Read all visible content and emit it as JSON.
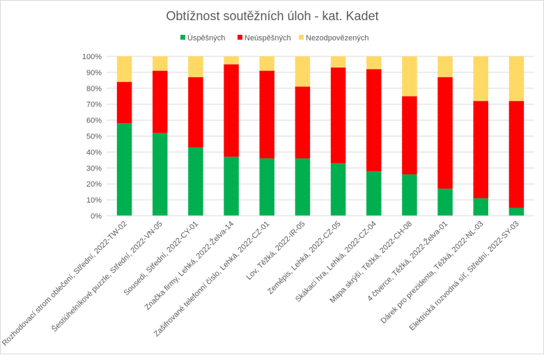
{
  "chart_data": {
    "type": "bar",
    "stacked": true,
    "percent": true,
    "title": "Obtížnost soutěžních úloh - kat. Kadet",
    "legend_position": "top",
    "ylim": [
      0,
      100
    ],
    "y_ticks": [
      "0%",
      "10%",
      "20%",
      "30%",
      "40%",
      "50%",
      "60%",
      "70%",
      "80%",
      "90%",
      "100%"
    ],
    "grid": true,
    "categories": [
      "Rozhodovací strom oblečení, Střední, 2022-TW-02",
      "Šestiúhelníkové puzzle, Střední, 2022-VN-05",
      "Sousedi, Střední, 2022-CY-01",
      "Značka firmy, Lehká, 2022-Želva-14",
      "Zašifrované telefonní číslo, Lehká, 2022-CZ-01",
      "Lov, Těžká, 2022-IR-05",
      "Zeměpis, Lehká, 2022-CZ-05",
      "Skákací hra, Lehká, 2022-CZ-04",
      "Mapa skrýší, Těžká, 2022-CH-08",
      "4 čtverce, Těžká, 2022-Želva-01",
      "Dárek pro prezidenta, Těžká, 2022-NL-03",
      "Elektrická rozvodná síť, Střední, 2022-SY-03"
    ],
    "series": [
      {
        "name": "Úspěšných",
        "color": "#00b050",
        "values": [
          58,
          52,
          43,
          37,
          36,
          36,
          33,
          28,
          26,
          17,
          11,
          5
        ]
      },
      {
        "name": "Neúspěšných",
        "color": "#ff0000",
        "values": [
          26,
          39,
          44,
          58,
          55,
          45,
          60,
          64,
          49,
          70,
          61,
          67
        ]
      },
      {
        "name": "Nezodpovězených",
        "color": "#ffd966",
        "values": [
          16,
          9,
          13,
          5,
          9,
          19,
          7,
          8,
          25,
          13,
          28,
          28
        ]
      }
    ]
  }
}
